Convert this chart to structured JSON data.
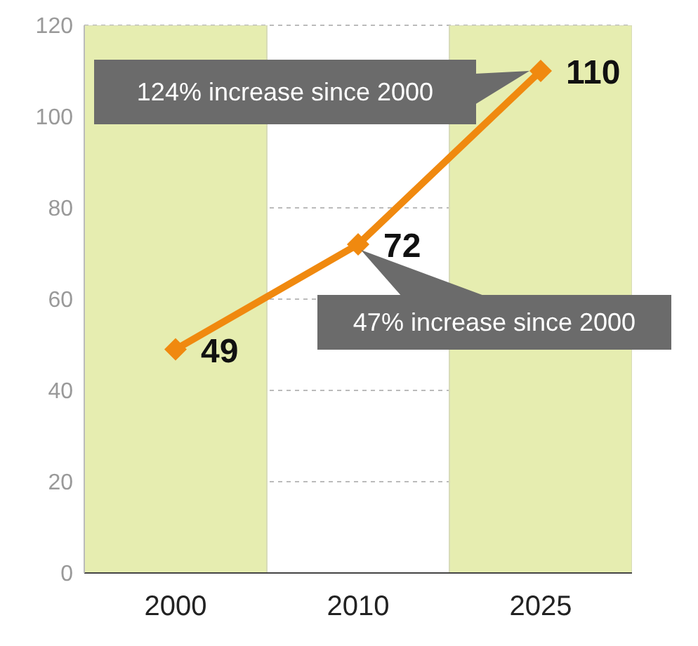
{
  "chart_data": {
    "type": "line",
    "categories": [
      "2000",
      "2010",
      "2025"
    ],
    "values": [
      49,
      72,
      110
    ],
    "color": "#f0890f",
    "marker": "diamond",
    "data_labels": true,
    "ylim": [
      0,
      120
    ],
    "yticks": [
      0,
      20,
      40,
      60,
      80,
      100,
      120
    ],
    "grid": "y",
    "line_style": "solid",
    "bands": [
      {
        "axis": "x",
        "from": "2000",
        "to": "2000",
        "color": "#e6edb0"
      },
      {
        "axis": "x",
        "from": "2025",
        "to": "2025",
        "color": "#e6edb0"
      }
    ],
    "annotations": [
      "124% increase since 2000",
      {
        "text": "47% increase since 2000",
        "x": "2010",
        "y": 72
      }
    ]
  }
}
